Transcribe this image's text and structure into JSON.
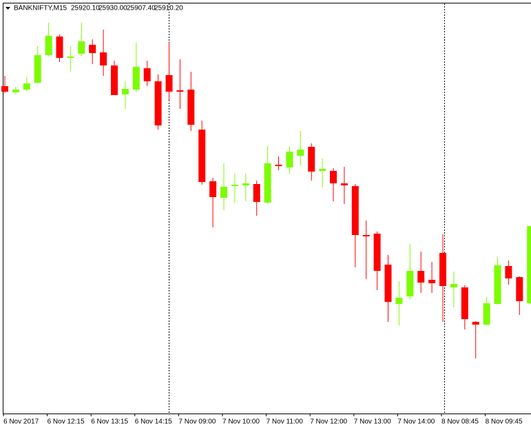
{
  "header": {
    "symbol": "BANKNIFTY,M15",
    "open": "25920.10",
    "high": "25930.00",
    "low": "25907.40",
    "close": "25910.20"
  },
  "chart_data": {
    "type": "candlestick",
    "categories": [
      "6 Nov 2017",
      null,
      null,
      null,
      "6 Nov 12:15",
      null,
      null,
      null,
      "6 Nov 13:15",
      null,
      null,
      null,
      "6 Nov 14:15",
      null,
      null,
      null,
      "7 Nov 09:00",
      null,
      null,
      null,
      "7 Nov 10:00",
      null,
      null,
      null,
      "7 Nov 11:00",
      null,
      null,
      null,
      "7 Nov 12:00",
      null,
      null,
      null,
      "7 Nov 13:00",
      null,
      null,
      null,
      "7 Nov 14:00",
      null,
      null,
      null,
      "8 Nov 08:45",
      null,
      null,
      null,
      "8 Nov 09:45",
      null,
      null,
      null,
      null
    ],
    "open": [
      25875,
      25866,
      25870,
      25880,
      25920,
      25947,
      25916,
      25922,
      25935,
      25924,
      25905,
      25863,
      25870,
      25901,
      25882,
      25891,
      25869,
      25870,
      25812,
      25737,
      25713,
      25731,
      25731,
      25733,
      25706,
      25761,
      25757,
      25774,
      25787,
      25752,
      25752,
      25734,
      25730,
      25659,
      25661,
      25616,
      25559,
      25570,
      25607,
      25594,
      25633,
      25583,
      25583,
      25533,
      25529,
      25559,
      25614,
      25598,
      25560
    ],
    "high": [
      25890,
      25874,
      25888,
      25933,
      25967,
      25950,
      25933,
      25967,
      25943,
      25957,
      25912,
      25882,
      25938,
      25912,
      25892,
      25938,
      25914,
      25896,
      25825,
      25742,
      25763,
      25748,
      25748,
      25738,
      25788,
      25773,
      25788,
      25810,
      25792,
      25770,
      25756,
      25758,
      25733,
      25680,
      25664,
      25630,
      25592,
      25646,
      25635,
      25620,
      25660,
      25606,
      25586,
      25534,
      25569,
      25627,
      25622,
      25599,
      25670
    ],
    "low": [
      25865,
      25863,
      25868,
      25879,
      25918,
      25910,
      25897,
      25918,
      25907,
      25890,
      25862,
      25842,
      25866,
      25875,
      25812,
      25855,
      25842,
      25810,
      25732,
      25670,
      25695,
      25706,
      25708,
      25687,
      25704,
      25753,
      25748,
      25760,
      25738,
      25728,
      25708,
      25704,
      25612,
      25595,
      25579,
      25533,
      25528,
      25566,
      25575,
      25575,
      25533,
      25554,
      25522,
      25480,
      25528,
      25558,
      25587,
      25543,
      25559
    ],
    "close": [
      25867,
      25870,
      25879,
      25920,
      25948,
      25916,
      25918,
      25940,
      25923,
      25905,
      25862,
      25871,
      25903,
      25882,
      25818,
      25867,
      25868,
      25819,
      25736,
      25714,
      25729,
      25732,
      25734,
      25707,
      25763,
      25760,
      25780,
      25783,
      25751,
      25755,
      25734,
      25731,
      25659,
      25658,
      25607,
      25562,
      25568,
      25607,
      25590,
      25589,
      25585,
      25588,
      25537,
      25529,
      25560,
      25615,
      25596,
      25563,
      25672
    ],
    "up_color": "#7cfc00",
    "down_color": "#ff0000",
    "ylim": [
      25400,
      26000
    ]
  }
}
